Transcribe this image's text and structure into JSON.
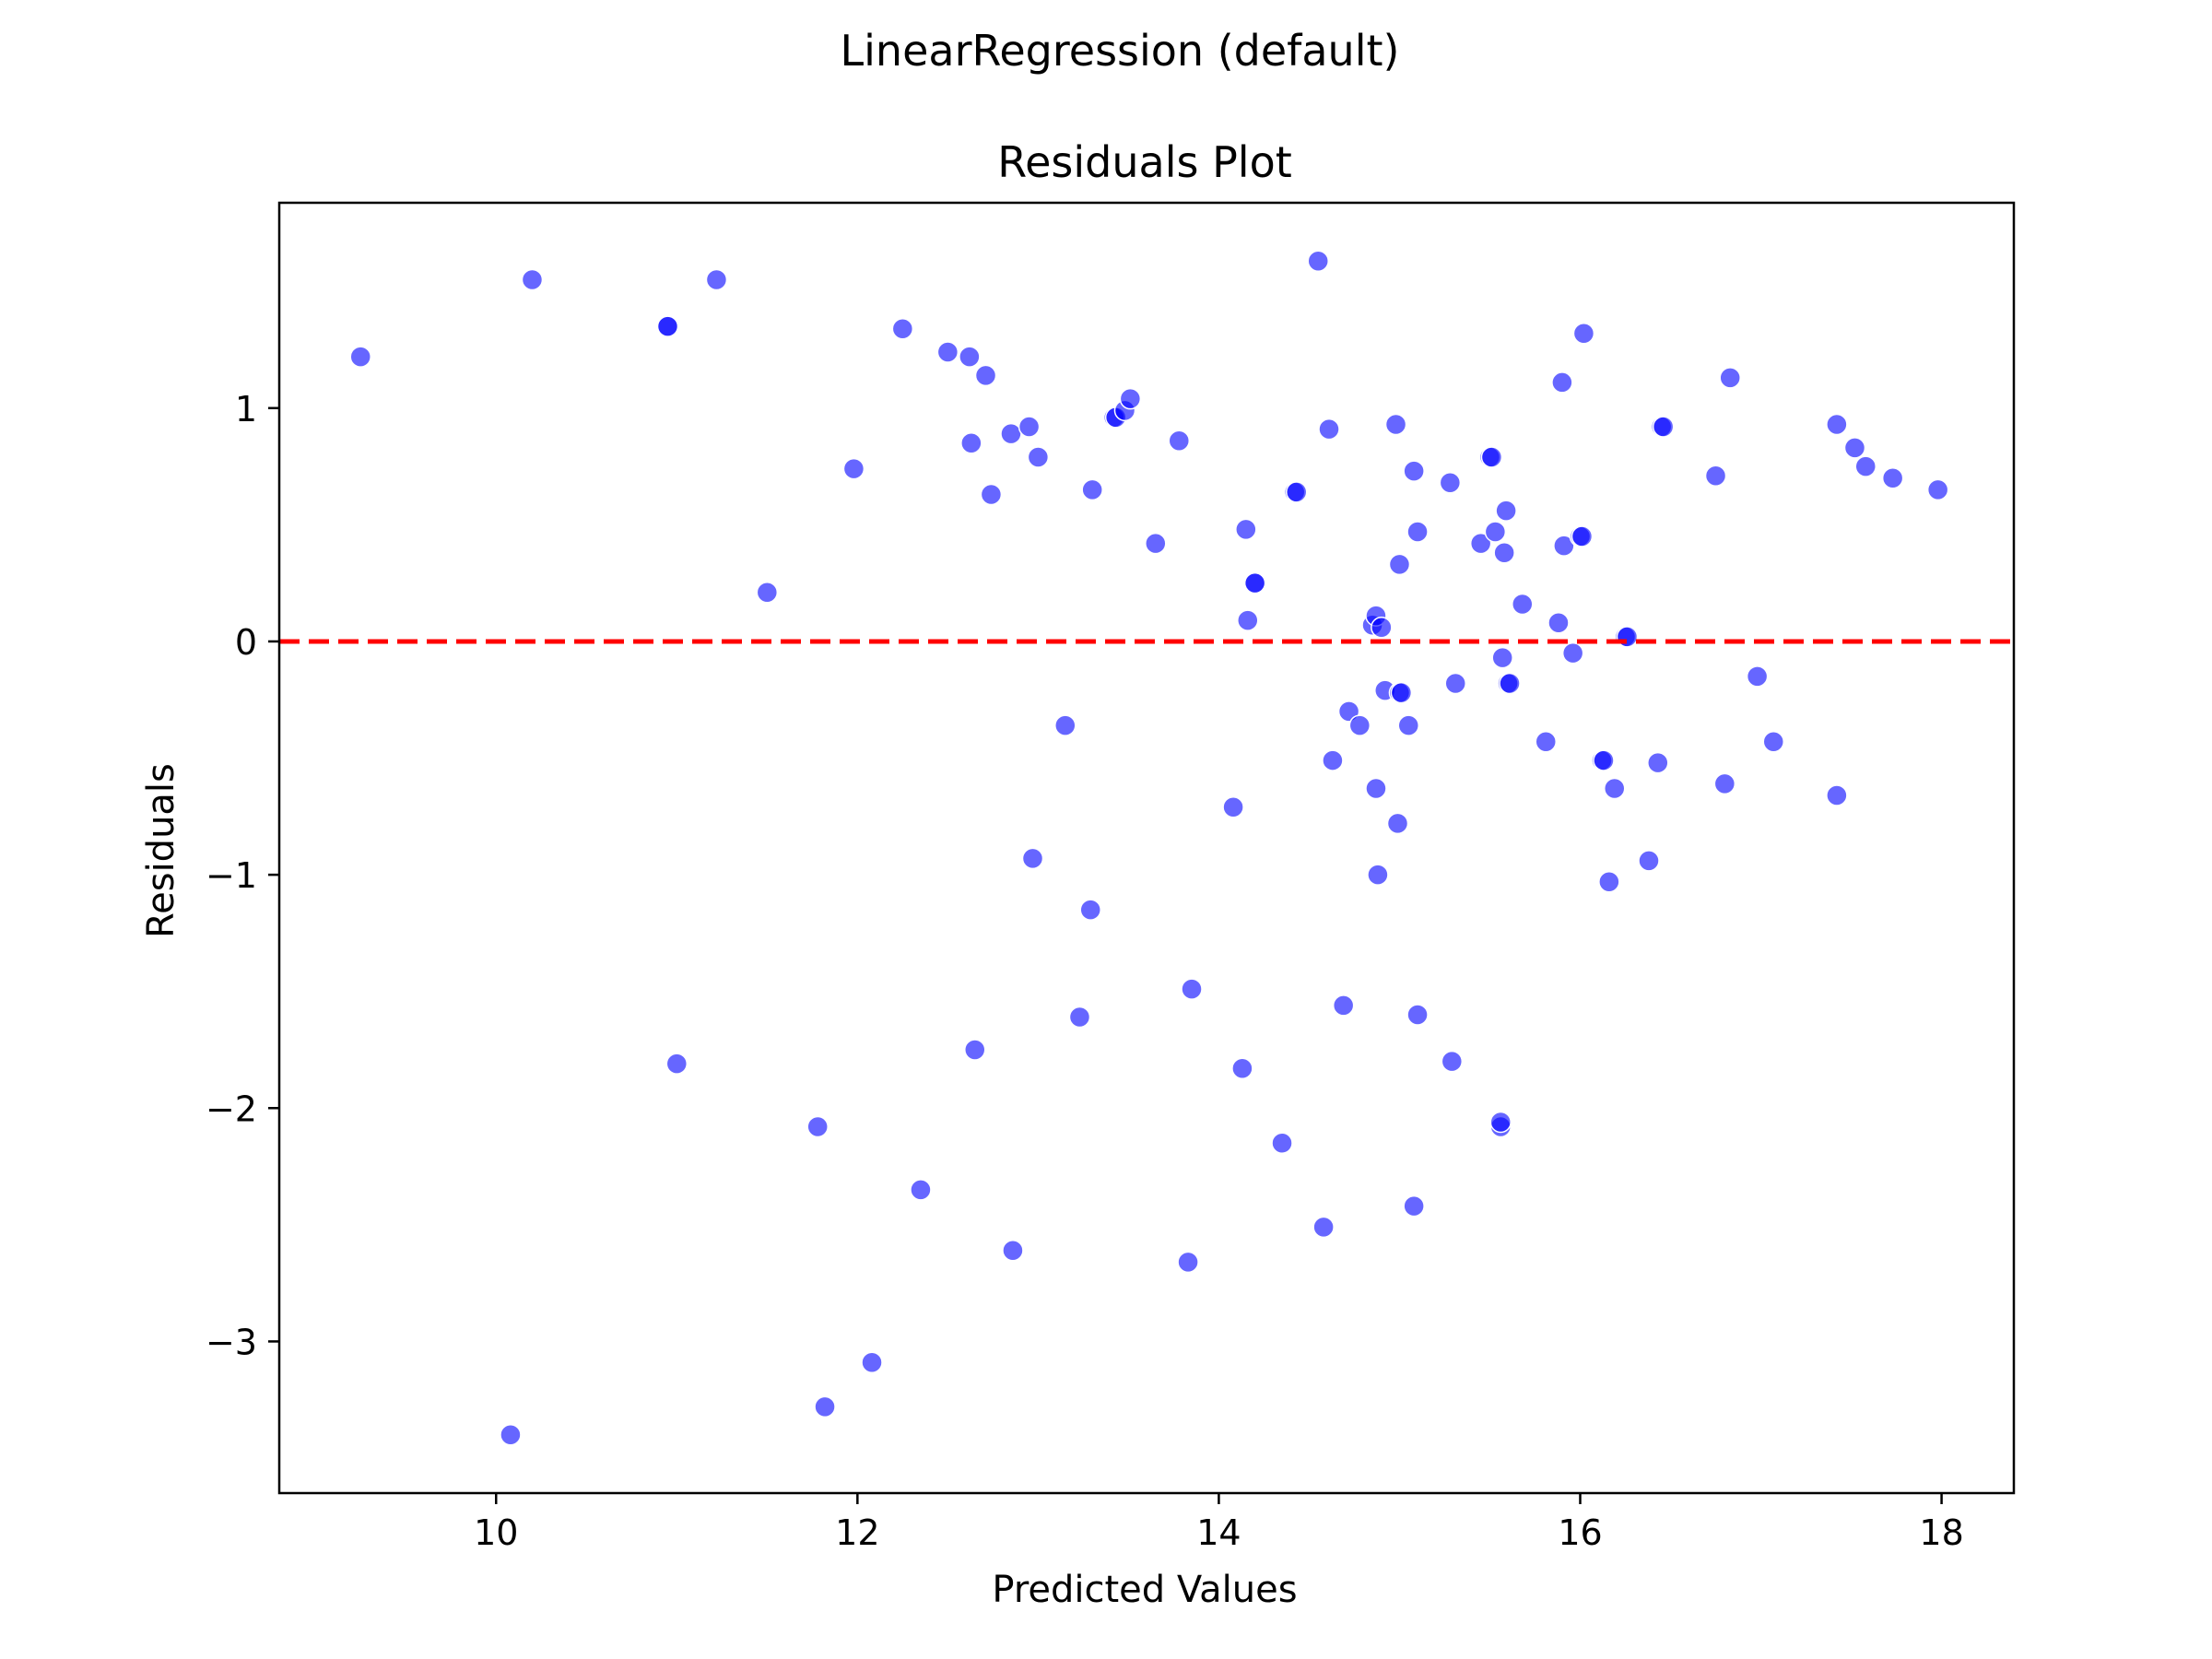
{
  "figure": {
    "suptitle": "LinearRegression (default)"
  },
  "chart_data": {
    "type": "scatter",
    "title": "Residuals Plot",
    "xlabel": "Predicted Values",
    "ylabel": "Residuals",
    "xlim": [
      8.8,
      18.4
    ],
    "ylim": [
      -3.65,
      1.88
    ],
    "xticks": [
      10,
      12,
      14,
      16,
      18
    ],
    "yticks": [
      -3,
      -2,
      -1,
      0,
      1
    ],
    "ytick_labels": [
      "−3",
      "−2",
      "−1",
      "0",
      "1"
    ],
    "grid": false,
    "reference_line": {
      "y": 0,
      "style": "dashed",
      "color": "#ff0000"
    },
    "point_color": "#0000ff",
    "point_alpha": 0.6,
    "points": [
      {
        "x": 9.25,
        "y": 1.22
      },
      {
        "x": 10.2,
        "y": 1.55
      },
      {
        "x": 10.95,
        "y": 1.35
      },
      {
        "x": 10.95,
        "y": 1.35
      },
      {
        "x": 11.22,
        "y": 1.55
      },
      {
        "x": 11.5,
        "y": 0.21
      },
      {
        "x": 11.98,
        "y": 0.74
      },
      {
        "x": 12.25,
        "y": 1.34
      },
      {
        "x": 12.5,
        "y": 1.24
      },
      {
        "x": 12.62,
        "y": 1.22
      },
      {
        "x": 12.63,
        "y": 0.85
      },
      {
        "x": 12.71,
        "y": 1.14
      },
      {
        "x": 12.74,
        "y": 0.63
      },
      {
        "x": 12.85,
        "y": 0.89
      },
      {
        "x": 12.95,
        "y": 0.92
      },
      {
        "x": 13.0,
        "y": 0.79
      },
      {
        "x": 13.3,
        "y": 0.65
      },
      {
        "x": 13.42,
        "y": 0.96
      },
      {
        "x": 13.43,
        "y": 0.96
      },
      {
        "x": 13.48,
        "y": 0.99
      },
      {
        "x": 13.51,
        "y": 1.04
      },
      {
        "x": 13.65,
        "y": 0.42
      },
      {
        "x": 13.78,
        "y": 0.86
      },
      {
        "x": 14.15,
        "y": 0.48
      },
      {
        "x": 14.16,
        "y": 0.09
      },
      {
        "x": 14.2,
        "y": 0.25
      },
      {
        "x": 14.2,
        "y": 0.25
      },
      {
        "x": 14.42,
        "y": 0.64
      },
      {
        "x": 14.43,
        "y": 0.64
      },
      {
        "x": 14.55,
        "y": 1.63
      },
      {
        "x": 14.61,
        "y": 0.91
      },
      {
        "x": 14.85,
        "y": 0.07
      },
      {
        "x": 14.87,
        "y": 0.11
      },
      {
        "x": 14.9,
        "y": 0.06
      },
      {
        "x": 14.98,
        "y": 0.93
      },
      {
        "x": 15.0,
        "y": 0.33
      },
      {
        "x": 15.08,
        "y": 0.73
      },
      {
        "x": 15.1,
        "y": 0.47
      },
      {
        "x": 15.28,
        "y": 0.68
      },
      {
        "x": 15.45,
        "y": 0.42
      },
      {
        "x": 15.5,
        "y": 0.79
      },
      {
        "x": 15.51,
        "y": 0.79
      },
      {
        "x": 15.53,
        "y": 0.47
      },
      {
        "x": 15.58,
        "y": 0.38
      },
      {
        "x": 15.59,
        "y": 0.56
      },
      {
        "x": 15.68,
        "y": 0.16
      },
      {
        "x": 15.88,
        "y": 0.08
      },
      {
        "x": 15.9,
        "y": 1.11
      },
      {
        "x": 15.91,
        "y": 0.41
      },
      {
        "x": 16.0,
        "y": 0.45
      },
      {
        "x": 16.01,
        "y": 0.45
      },
      {
        "x": 16.02,
        "y": 1.32
      },
      {
        "x": 16.25,
        "y": 0.02
      },
      {
        "x": 16.26,
        "y": 0.02
      },
      {
        "x": 16.45,
        "y": 0.92
      },
      {
        "x": 16.46,
        "y": 0.92
      },
      {
        "x": 16.75,
        "y": 0.71
      },
      {
        "x": 16.83,
        "y": 1.13
      },
      {
        "x": 17.42,
        "y": 0.93
      },
      {
        "x": 17.52,
        "y": 0.83
      },
      {
        "x": 17.58,
        "y": 0.75
      },
      {
        "x": 17.73,
        "y": 0.7
      },
      {
        "x": 17.98,
        "y": 0.65
      },
      {
        "x": 13.15,
        "y": -0.36
      },
      {
        "x": 14.63,
        "y": -0.51
      },
      {
        "x": 14.72,
        "y": -0.3
      },
      {
        "x": 14.78,
        "y": -0.36
      },
      {
        "x": 14.87,
        "y": -0.63
      },
      {
        "x": 14.92,
        "y": -0.21
      },
      {
        "x": 15.0,
        "y": -0.22
      },
      {
        "x": 15.01,
        "y": -0.22
      },
      {
        "x": 15.05,
        "y": -0.36
      },
      {
        "x": 14.99,
        "y": -0.78
      },
      {
        "x": 15.31,
        "y": -0.18
      },
      {
        "x": 15.57,
        "y": -0.07
      },
      {
        "x": 15.6,
        "y": -0.18
      },
      {
        "x": 15.61,
        "y": -0.18
      },
      {
        "x": 15.81,
        "y": -0.43
      },
      {
        "x": 15.96,
        "y": -0.05
      },
      {
        "x": 16.12,
        "y": -0.51
      },
      {
        "x": 16.13,
        "y": -0.51
      },
      {
        "x": 16.19,
        "y": -0.63
      },
      {
        "x": 16.43,
        "y": -0.52
      },
      {
        "x": 16.8,
        "y": -0.61
      },
      {
        "x": 16.98,
        "y": -0.15
      },
      {
        "x": 17.07,
        "y": -0.43
      },
      {
        "x": 17.42,
        "y": -0.66
      },
      {
        "x": 14.08,
        "y": -0.71
      },
      {
        "x": 14.88,
        "y": -1.0
      },
      {
        "x": 16.16,
        "y": -1.03
      },
      {
        "x": 16.38,
        "y": -0.94
      },
      {
        "x": 12.97,
        "y": -0.93
      },
      {
        "x": 13.29,
        "y": -1.15
      },
      {
        "x": 13.85,
        "y": -1.49
      },
      {
        "x": 14.69,
        "y": -1.56
      },
      {
        "x": 15.1,
        "y": -1.6
      },
      {
        "x": 15.29,
        "y": -1.8
      },
      {
        "x": 13.23,
        "y": -1.61
      },
      {
        "x": 12.65,
        "y": -1.75
      },
      {
        "x": 11.0,
        "y": -1.81
      },
      {
        "x": 14.13,
        "y": -1.83
      },
      {
        "x": 11.78,
        "y": -2.08
      },
      {
        "x": 15.56,
        "y": -2.08
      },
      {
        "x": 15.56,
        "y": -2.06
      },
      {
        "x": 14.35,
        "y": -2.15
      },
      {
        "x": 12.35,
        "y": -2.35
      },
      {
        "x": 15.08,
        "y": -2.42
      },
      {
        "x": 14.58,
        "y": -2.51
      },
      {
        "x": 12.86,
        "y": -2.61
      },
      {
        "x": 13.83,
        "y": -2.66
      },
      {
        "x": 12.08,
        "y": -3.09
      },
      {
        "x": 11.82,
        "y": -3.28
      },
      {
        "x": 10.08,
        "y": -3.4
      }
    ]
  }
}
